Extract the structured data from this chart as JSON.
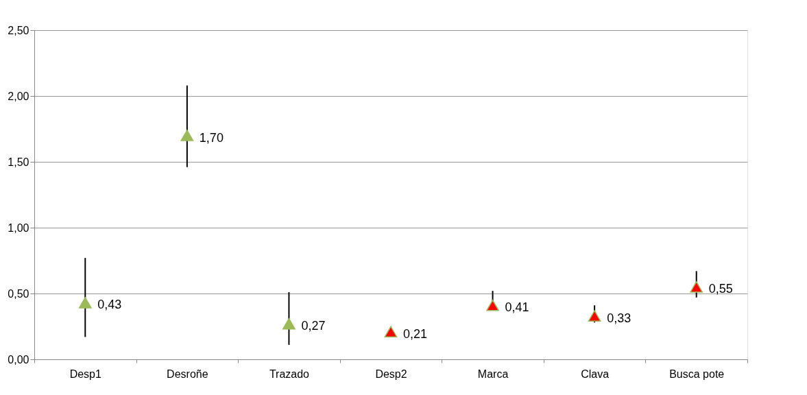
{
  "chart_data": {
    "type": "scatter",
    "categories": [
      "Desp1",
      "Desroñe",
      "Trazado",
      "Desp2",
      "Marca",
      "Clava",
      "Busca pote"
    ],
    "series": [
      {
        "color": "#9bbb59",
        "values": [
          0.43,
          1.7,
          0.27,
          null,
          null,
          null,
          null
        ],
        "value_labels": [
          "0,43",
          "1,70",
          "0,27",
          null,
          null,
          null,
          null
        ],
        "errors": [
          [
            0.17,
            0.77
          ],
          [
            1.46,
            2.08
          ],
          [
            0.11,
            0.51
          ],
          null,
          null,
          null,
          null
        ]
      },
      {
        "color": "#ff0000",
        "values": [
          null,
          null,
          null,
          0.21,
          0.41,
          0.33,
          0.55
        ],
        "value_labels": [
          null,
          null,
          null,
          "0,21",
          "0,41",
          "0,33",
          "0,55"
        ],
        "errors": [
          null,
          null,
          null,
          null,
          [
            0.39,
            0.52
          ],
          [
            0.28,
            0.41
          ],
          [
            0.47,
            0.67
          ]
        ]
      }
    ],
    "ylim": [
      0,
      2.5
    ],
    "yticks": [
      {
        "value": 0,
        "label": "0,00"
      },
      {
        "value": 0.5,
        "label": "0,50"
      },
      {
        "value": 1,
        "label": "1,00"
      },
      {
        "value": 1.5,
        "label": "1,50"
      },
      {
        "value": 2,
        "label": "2,00"
      },
      {
        "value": 2.5,
        "label": "2,50"
      }
    ],
    "grid": "y",
    "marker": "triangle",
    "legend": false
  }
}
